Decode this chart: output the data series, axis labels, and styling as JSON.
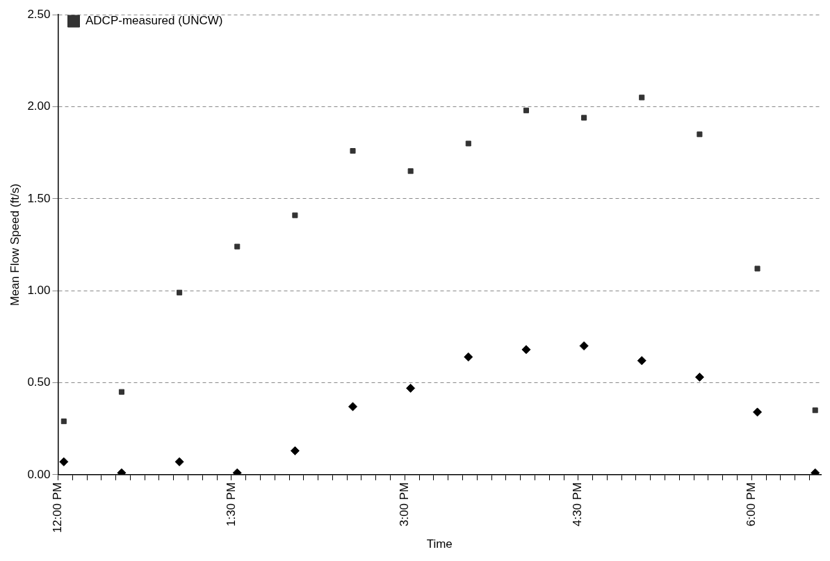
{
  "chart_data": {
    "type": "scatter",
    "xlabel": "Time",
    "ylabel": "Mean Flow Speed (ft/s)",
    "x": [
      12.05,
      12.55,
      13.05,
      13.55,
      14.05,
      14.55,
      15.05,
      15.55,
      16.05,
      16.55,
      17.05,
      17.55,
      18.05,
      18.55
    ],
    "series": [
      {
        "color": "#000000",
        "marker": "diamond",
        "values": [
          0.07,
          0.01,
          0.07,
          0.01,
          0.13,
          0.37,
          0.47,
          0.64,
          0.68,
          0.7,
          0.62,
          0.53,
          0.34,
          0.01
        ]
      },
      {
        "name": "ADCP-measured (UNCW)",
        "color": "#333333",
        "marker": "square",
        "values": [
          0.29,
          0.45,
          0.99,
          1.24,
          1.41,
          1.76,
          1.65,
          1.8,
          1.98,
          1.94,
          2.05,
          1.85,
          1.12,
          0.35
        ]
      }
    ],
    "xlim": [
      12,
      18.6
    ],
    "xticks": [
      {
        "value": 12,
        "label": "12:00 PM"
      },
      {
        "value": 12.125,
        "label": null
      },
      {
        "value": 12.25,
        "label": null
      },
      {
        "value": 12.375,
        "label": null
      },
      {
        "value": 12.5,
        "label": null
      },
      {
        "value": 12.625,
        "label": null
      },
      {
        "value": 12.75,
        "label": null
      },
      {
        "value": 12.875,
        "label": null
      },
      {
        "value": 13,
        "label": null
      },
      {
        "value": 13.125,
        "label": null
      },
      {
        "value": 13.25,
        "label": null
      },
      {
        "value": 13.375,
        "label": null
      },
      {
        "value": 13.5,
        "label": "1:30 PM"
      },
      {
        "value": 13.625,
        "label": null
      },
      {
        "value": 13.75,
        "label": null
      },
      {
        "value": 13.875,
        "label": null
      },
      {
        "value": 14,
        "label": null
      },
      {
        "value": 14.125,
        "label": null
      },
      {
        "value": 14.25,
        "label": null
      },
      {
        "value": 14.375,
        "label": null
      },
      {
        "value": 14.5,
        "label": null
      },
      {
        "value": 14.625,
        "label": null
      },
      {
        "value": 14.75,
        "label": null
      },
      {
        "value": 14.875,
        "label": null
      },
      {
        "value": 15,
        "label": "3:00 PM"
      },
      {
        "value": 15.125,
        "label": null
      },
      {
        "value": 15.25,
        "label": null
      },
      {
        "value": 15.375,
        "label": null
      },
      {
        "value": 15.5,
        "label": null
      },
      {
        "value": 15.625,
        "label": null
      },
      {
        "value": 15.75,
        "label": null
      },
      {
        "value": 15.875,
        "label": null
      },
      {
        "value": 16,
        "label": null
      },
      {
        "value": 16.125,
        "label": null
      },
      {
        "value": 16.25,
        "label": null
      },
      {
        "value": 16.375,
        "label": null
      },
      {
        "value": 16.5,
        "label": "4:30 PM"
      },
      {
        "value": 16.625,
        "label": null
      },
      {
        "value": 16.75,
        "label": null
      },
      {
        "value": 16.875,
        "label": null
      },
      {
        "value": 17,
        "label": null
      },
      {
        "value": 17.125,
        "label": null
      },
      {
        "value": 17.25,
        "label": null
      },
      {
        "value": 17.375,
        "label": null
      },
      {
        "value": 17.5,
        "label": null
      },
      {
        "value": 17.625,
        "label": null
      },
      {
        "value": 17.75,
        "label": null
      },
      {
        "value": 17.875,
        "label": null
      },
      {
        "value": 18,
        "label": "6:00 PM"
      },
      {
        "value": 18.125,
        "label": null
      },
      {
        "value": 18.25,
        "label": null
      },
      {
        "value": 18.375,
        "label": null
      },
      {
        "value": 18.5,
        "label": null
      }
    ],
    "ylim": [
      0,
      2.5
    ],
    "yticks": [
      {
        "value": 0,
        "label": "0.00"
      },
      {
        "value": 0.5,
        "label": "0.50"
      },
      {
        "value": 1,
        "label": "1.00"
      },
      {
        "value": 1.5,
        "label": "1.50"
      },
      {
        "value": 2,
        "label": "2.00"
      },
      {
        "value": 2.5,
        "label": "2.50"
      }
    ],
    "grid": "y",
    "line_style": "dashed",
    "legend": "top left"
  }
}
